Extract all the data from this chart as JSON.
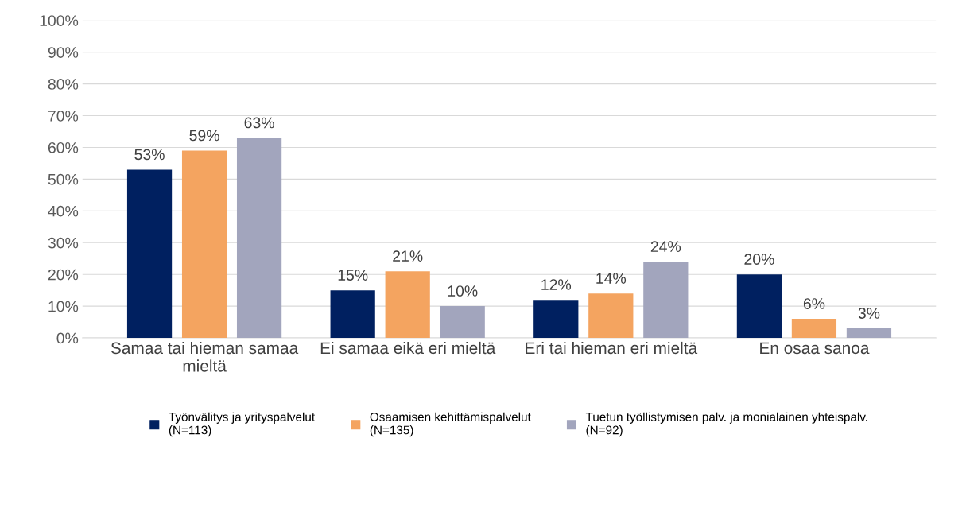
{
  "chart_data": {
    "type": "bar",
    "categories": [
      "Samaa tai hieman samaa\nmieltä",
      "Ei samaa eikä eri mieltä",
      "Eri tai hieman eri mieltä",
      "En osaa sanoa"
    ],
    "series": [
      {
        "name": "Työnvälitys ja yrityspalvelut\n(N=113)",
        "color": "#002060",
        "values": [
          53,
          15,
          12,
          20
        ],
        "value_labels": [
          "53%",
          "15%",
          "12%",
          "20%"
        ]
      },
      {
        "name": "Osaamisen kehittämispalvelut\n(N=135)",
        "color": "#f4a460",
        "values": [
          59,
          21,
          14,
          6
        ],
        "value_labels": [
          "59%",
          "21%",
          "14%",
          "6%"
        ]
      },
      {
        "name": "Tuetun työllistymisen palv. ja monialainen yhteispalv.\n(N=92)",
        "color": "#a2a5bd",
        "values": [
          63,
          10,
          24,
          3
        ],
        "value_labels": [
          "63%",
          "10%",
          "24%",
          "3%"
        ]
      }
    ],
    "ylim": [
      0,
      100
    ],
    "yticks": [
      {
        "value": 0,
        "label": "0%"
      },
      {
        "value": 10,
        "label": "10%"
      },
      {
        "value": 20,
        "label": "20%"
      },
      {
        "value": 30,
        "label": "30%"
      },
      {
        "value": 40,
        "label": "40%"
      },
      {
        "value": 50,
        "label": "50%"
      },
      {
        "value": 60,
        "label": "60%"
      },
      {
        "value": 70,
        "label": "70%"
      },
      {
        "value": 80,
        "label": "80%"
      },
      {
        "value": 90,
        "label": "90%"
      },
      {
        "value": 100,
        "label": "100%"
      }
    ],
    "grid": "y",
    "legend": "bottom"
  }
}
